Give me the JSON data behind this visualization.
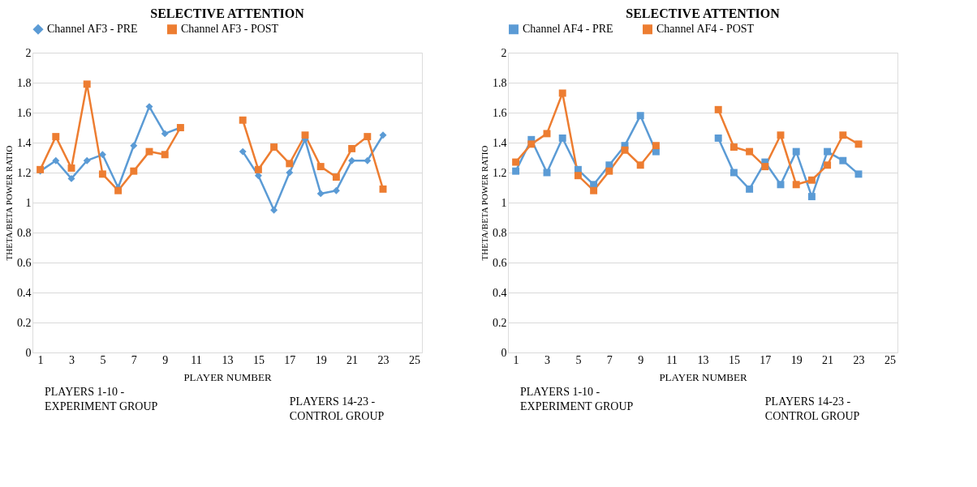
{
  "chart_data": [
    {
      "type": "line",
      "title": "SELECTIVE ATTENTION",
      "xlabel": "PLAYER NUMBER",
      "ylabel": "THETA/BETA POWER RATIO",
      "x": [
        1,
        2,
        3,
        4,
        5,
        6,
        7,
        8,
        9,
        10,
        11,
        12,
        13,
        14,
        15,
        16,
        17,
        18,
        19,
        20,
        21,
        22,
        23
      ],
      "series": [
        {
          "name": "Channel AF3 - PRE",
          "color": "#5b9bd5",
          "marker": "diamond",
          "values": [
            1.21,
            1.28,
            1.16,
            1.28,
            1.32,
            1.1,
            1.38,
            1.64,
            1.46,
            1.5,
            null,
            null,
            null,
            1.34,
            1.18,
            0.95,
            1.2,
            1.42,
            1.06,
            1.08,
            1.28,
            1.28,
            1.45
          ]
        },
        {
          "name": "Channel AF3 - POST",
          "color": "#ed7d31",
          "marker": "square",
          "values": [
            1.22,
            1.44,
            1.23,
            1.79,
            1.19,
            1.08,
            1.21,
            1.34,
            1.32,
            1.5,
            null,
            null,
            null,
            1.55,
            1.22,
            1.37,
            1.26,
            1.45,
            1.24,
            1.17,
            1.36,
            1.44,
            1.09
          ]
        }
      ],
      "xlim": [
        0.5,
        25.5
      ],
      "xticks": [
        1,
        3,
        5,
        7,
        9,
        11,
        13,
        15,
        17,
        19,
        21,
        23,
        25
      ],
      "ylim": [
        0,
        2
      ],
      "yticks": [
        0,
        0.2,
        0.4,
        0.6,
        0.8,
        1,
        1.2,
        1.4,
        1.6,
        1.8,
        2
      ],
      "grid": "y",
      "legend": "top",
      "line_style": "solid",
      "annotations": [
        "PLAYERS 1-10 -\nEXPERIMENT GROUP",
        "PLAYERS 14-23 -\nCONTROL GROUP"
      ]
    },
    {
      "type": "line",
      "title": "SELECTIVE ATTENTION",
      "xlabel": "PLAYER NUMBER",
      "ylabel": "THETA/BETA POWER RATIO",
      "x": [
        1,
        2,
        3,
        4,
        5,
        6,
        7,
        8,
        9,
        10,
        11,
        12,
        13,
        14,
        15,
        16,
        17,
        18,
        19,
        20,
        21,
        22,
        23
      ],
      "series": [
        {
          "name": "Channel AF4 - PRE",
          "color": "#5b9bd5",
          "marker": "square",
          "values": [
            1.21,
            1.42,
            1.2,
            1.43,
            1.22,
            1.12,
            1.25,
            1.38,
            1.58,
            1.34,
            null,
            null,
            null,
            1.43,
            1.2,
            1.09,
            1.27,
            1.12,
            1.34,
            1.04,
            1.34,
            1.28,
            1.19
          ]
        },
        {
          "name": "Channel AF4 - POST",
          "color": "#ed7d31",
          "marker": "square",
          "values": [
            1.27,
            1.39,
            1.46,
            1.73,
            1.18,
            1.08,
            1.21,
            1.35,
            1.25,
            1.38,
            null,
            null,
            null,
            1.62,
            1.37,
            1.34,
            1.24,
            1.45,
            1.12,
            1.15,
            1.25,
            1.45,
            1.39
          ]
        }
      ],
      "xlim": [
        0.5,
        25.5
      ],
      "xticks": [
        1,
        3,
        5,
        7,
        9,
        11,
        13,
        15,
        17,
        19,
        21,
        23,
        25
      ],
      "ylim": [
        0,
        2
      ],
      "yticks": [
        0,
        0.2,
        0.4,
        0.6,
        0.8,
        1,
        1.2,
        1.4,
        1.6,
        1.8,
        2
      ],
      "grid": "y",
      "legend": "top",
      "line_style": "solid",
      "annotations": [
        "PLAYERS 1-10 -\nEXPERIMENT GROUP",
        "PLAYERS 14-23 -\nCONTROL GROUP"
      ]
    }
  ]
}
